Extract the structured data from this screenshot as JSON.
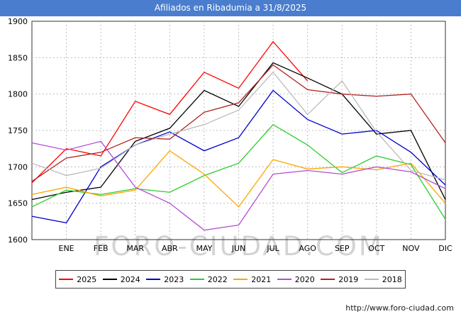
{
  "header": {
    "title": "Afiliados en Ribadumia a 31/8/2025"
  },
  "watermark": "FORO-CIUDAD.COM",
  "footer": {
    "url": "http://www.foro-ciudad.com"
  },
  "colors": {
    "header_bg": "#4a7dcd",
    "grid": "#bfbfbf",
    "plot_border": "#333333",
    "watermark": "#cccccc"
  },
  "chart_data": {
    "type": "line",
    "title": "Afiliados en Ribadumia a 31/8/2025",
    "xlabel": "",
    "ylabel": "",
    "ylim": [
      1600,
      1900
    ],
    "y_ticks": [
      1600,
      1650,
      1700,
      1750,
      1800,
      1850,
      1900
    ],
    "grid": true,
    "legend_position": "bottom",
    "categories": [
      "",
      "ENE",
      "FEB",
      "MAR",
      "ABR",
      "MAY",
      "JUN",
      "JUL",
      "AGO",
      "SEP",
      "OCT",
      "NOV",
      "DIC"
    ],
    "series": [
      {
        "name": "2025",
        "color": "#ff0000",
        "values": [
          1678,
          1725,
          1715,
          1790,
          1772,
          1830,
          1808,
          1872,
          1818
        ]
      },
      {
        "name": "2024",
        "color": "#000000",
        "values": [
          1655,
          1665,
          1672,
          1735,
          1753,
          1805,
          1783,
          1843,
          1822,
          1800,
          1745,
          1750,
          1655
        ]
      },
      {
        "name": "2023",
        "color": "#0000cc",
        "values": [
          1632,
          1623,
          1700,
          1730,
          1748,
          1722,
          1740,
          1805,
          1765,
          1745,
          1750,
          1720,
          1675
        ]
      },
      {
        "name": "2022",
        "color": "#2dcc2d",
        "values": [
          1645,
          1668,
          1662,
          1670,
          1665,
          1688,
          1705,
          1758,
          1730,
          1692,
          1715,
          1703,
          1628
        ]
      },
      {
        "name": "2021",
        "color": "#ffa500",
        "values": [
          1662,
          1672,
          1660,
          1668,
          1722,
          1690,
          1645,
          1710,
          1697,
          1700,
          1696,
          1705,
          1650
        ]
      },
      {
        "name": "2020",
        "color": "#b44fd0",
        "values": [
          1733,
          1723,
          1735,
          1672,
          1650,
          1613,
          1620,
          1690,
          1695,
          1690,
          1700,
          1693,
          1670
        ]
      },
      {
        "name": "2019",
        "color": "#b22222",
        "values": [
          1680,
          1712,
          1720,
          1740,
          1738,
          1775,
          1788,
          1840,
          1806,
          1800,
          1797,
          1800,
          1733
        ]
      },
      {
        "name": "2018",
        "color": "#bbbbbb",
        "values": [
          1705,
          1688,
          1698,
          1730,
          1745,
          1758,
          1778,
          1830,
          1772,
          1818,
          1748,
          1695,
          1682
        ]
      }
    ]
  }
}
